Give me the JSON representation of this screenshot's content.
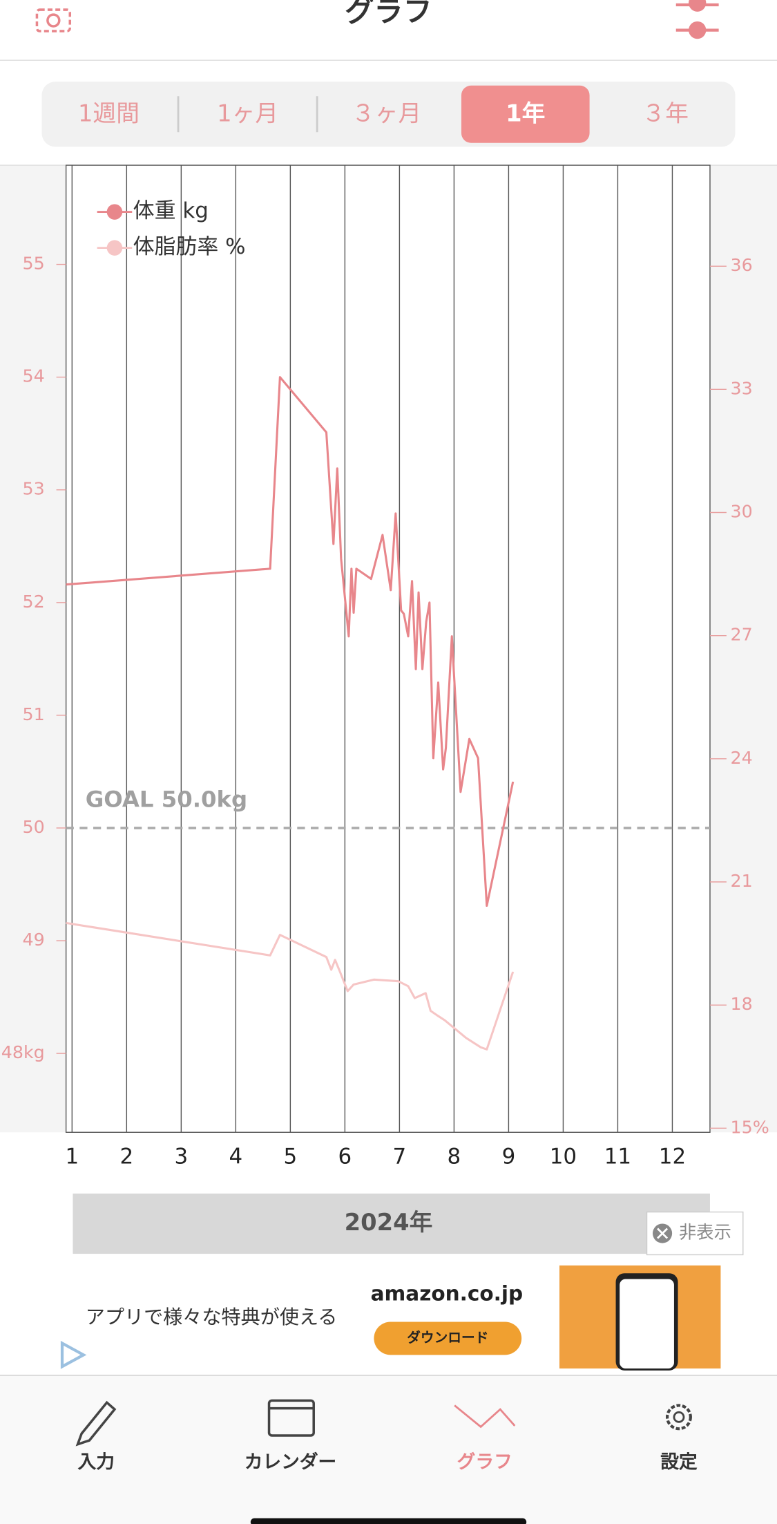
{
  "header": {
    "title": "グラフ"
  },
  "tabs": {
    "items": [
      "1週間",
      "1ヶ月",
      "３ヶ月",
      "1年",
      "３年"
    ],
    "selected": 3
  },
  "chart_data": {
    "type": "line",
    "xlim": [
      0.89,
      12.69
    ],
    "xticks": [
      1,
      2,
      3,
      4,
      5,
      6,
      7,
      8,
      9,
      10,
      11,
      12
    ],
    "ylim": [
      47.3,
      55.88
    ],
    "yticks": [
      {
        "value": 48,
        "label": "48kg"
      },
      49,
      50,
      51,
      52,
      53,
      54,
      55
    ],
    "y2lim": [
      14.9,
      38.46
    ],
    "y2ticks": [
      {
        "value": 15,
        "label": "15%"
      },
      18,
      21,
      24,
      27,
      30,
      33,
      36
    ],
    "grid": true,
    "legend": "top-left",
    "goal": {
      "value": 50,
      "label": "GOAL 50.0kg"
    },
    "x_title": "2024年",
    "series": [
      {
        "name": "体重 kg",
        "color": "#e8868b",
        "x": [
          0.89,
          4.63,
          4.81,
          5.66,
          5.79,
          5.86,
          5.93,
          6.07,
          6.12,
          6.16,
          6.21,
          6.48,
          6.69,
          6.84,
          6.93,
          7.03,
          7.08,
          7.16,
          7.23,
          7.3,
          7.35,
          7.42,
          7.49,
          7.55,
          7.62,
          7.71,
          7.8,
          7.85,
          7.96,
          8.12,
          8.28,
          8.44,
          8.6,
          9.08
        ],
        "values": [
          52.16,
          52.3,
          54.0,
          53.51,
          52.52,
          53.19,
          52.39,
          51.7,
          52.3,
          51.91,
          52.3,
          52.21,
          52.6,
          52.11,
          52.79,
          51.93,
          51.9,
          51.7,
          52.19,
          51.41,
          52.09,
          51.41,
          51.83,
          52.0,
          50.62,
          51.29,
          50.52,
          50.71,
          51.7,
          50.32,
          50.79,
          50.62,
          49.31,
          50.41
        ]
      },
      {
        "name": "体脂肪率 %",
        "color": "#f6c5c5",
        "axis": "y2",
        "x": [
          0.89,
          4.63,
          4.81,
          5.66,
          5.75,
          5.82,
          5.91,
          6.05,
          6.16,
          6.53,
          6.98,
          7.16,
          7.28,
          7.48,
          7.57,
          7.69,
          7.83,
          8.22,
          8.49,
          8.6,
          9.08
        ],
        "values": [
          20.0,
          19.21,
          19.71,
          19.17,
          18.86,
          19.1,
          18.81,
          18.34,
          18.5,
          18.62,
          18.58,
          18.46,
          18.17,
          18.29,
          17.86,
          17.75,
          17.63,
          17.2,
          16.97,
          16.92,
          18.81
        ]
      }
    ]
  },
  "ad": {
    "text": "アプリで様々な特典が使える",
    "brand": "amazon.co.jp",
    "button": "ダウンロード",
    "hide": "非表示"
  },
  "nav": {
    "items": [
      "入力",
      "カレンダー",
      "グラフ",
      "設定"
    ],
    "selected": 2
  }
}
